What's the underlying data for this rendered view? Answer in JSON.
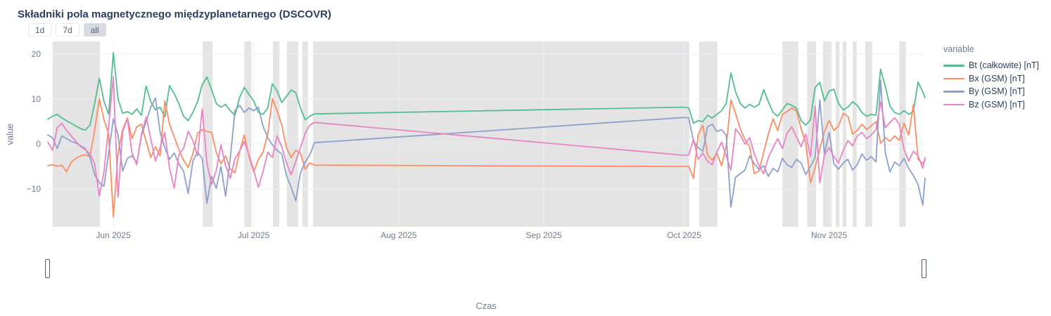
{
  "title": "Składniki pola magnetycznego międzyplanetarnego (DSCOVR)",
  "range_selector": {
    "buttons": [
      {
        "label": "1d",
        "active": false
      },
      {
        "label": "7d",
        "active": false
      },
      {
        "label": "all",
        "active": true
      }
    ]
  },
  "legend": {
    "title": "variable",
    "items": [
      {
        "label": "Bt (całkowite) [nT]",
        "color": "#53bd90"
      },
      {
        "label": "Bx (GSM) [nT]",
        "color": "#fc8d62"
      },
      {
        "label": "By (GSM) [nT]",
        "color": "#8da0cb"
      },
      {
        "label": "Bz (GSM) [nT]",
        "color": "#e983c4"
      }
    ]
  },
  "axes": {
    "y_title": "value",
    "x_title": "Czas",
    "y_ticks": [
      {
        "value": 20,
        "label": "20"
      },
      {
        "value": 10,
        "label": "10"
      },
      {
        "value": 0,
        "label": "0"
      },
      {
        "value": -10,
        "label": "−10"
      }
    ],
    "x_ticks": [
      {
        "day": 14,
        "label": "Jun 2025"
      },
      {
        "day": 44,
        "label": "Jul 2025"
      },
      {
        "day": 75,
        "label": "Aug 2025"
      },
      {
        "day": 106,
        "label": "Sep 2025"
      },
      {
        "day": 136,
        "label": "Oct 2025"
      },
      {
        "day": 167,
        "label": "Nov 2025"
      }
    ]
  },
  "colors": {
    "band": "#e4e4e4",
    "grid": "#ebeff7",
    "zeroline": "#e0e6f1",
    "tick_text": "#6e7b91",
    "title_text": "#2a3f5f"
  },
  "chart_data": {
    "type": "line",
    "title": "Składniki pola magnetycznego międzyplanetarnego (DSCOVR)",
    "xlabel": "Czas",
    "ylabel": "value",
    "legend_position": "right",
    "grid": true,
    "xlim": [
      0,
      187.5
    ],
    "ylim": [
      -18.4,
      22.8
    ],
    "x_unit": "day index (0 ≈ mid-May 2025; ticks mark month starts Jun–Nov 2025)",
    "data_gap": "no data between ≈14 Jul 2025 and ≈30 Sep 2025 (straight interpolation lines across shaded region)",
    "gap_bands_x": [
      [
        1.0,
        11.1
      ],
      [
        33.1,
        35.2
      ],
      [
        42.0,
        43.5
      ],
      [
        48.1,
        49.5
      ],
      [
        51.1,
        53.5
      ],
      [
        54.4,
        55.6
      ],
      [
        56.7,
        137.1
      ],
      [
        139.2,
        143.1
      ],
      [
        157.0,
        160.4
      ],
      [
        162.3,
        164.2
      ],
      [
        165.7,
        167.5
      ],
      [
        168.4,
        169.2
      ],
      [
        169.9,
        170.7
      ],
      [
        172.0,
        172.9
      ],
      [
        174.7,
        176.2
      ],
      [
        182.0,
        183.4
      ]
    ],
    "x": [
      0,
      1,
      2,
      3,
      4,
      5,
      6,
      7,
      8,
      9,
      10,
      11,
      12,
      13,
      14,
      15,
      16,
      17,
      18,
      19,
      20,
      21,
      22,
      23,
      24,
      25,
      26,
      27,
      28,
      29,
      30,
      31,
      32,
      33,
      34,
      35,
      36,
      37,
      38,
      39,
      40,
      41,
      42,
      43,
      44,
      45,
      46,
      47,
      48,
      49,
      50,
      51,
      52,
      53,
      54,
      55,
      56,
      57,
      136,
      137,
      138,
      139,
      140,
      141,
      142,
      143,
      144,
      145,
      146,
      147,
      148,
      149,
      150,
      151,
      152,
      153,
      154,
      155,
      156,
      157,
      158,
      159,
      160,
      161,
      162,
      163,
      164,
      165,
      166,
      167,
      168,
      169,
      170,
      171,
      172,
      173,
      174,
      175,
      176,
      177,
      178,
      179,
      180,
      181,
      182,
      183,
      184,
      185,
      186,
      187,
      187.5
    ],
    "series": [
      {
        "id": "bt",
        "name": "Bt (całkowite) [nT]",
        "color": "#53bd90",
        "values": [
          5.5,
          6.2,
          6.6,
          5.8,
          5.2,
          4.6,
          4.0,
          3.4,
          3.1,
          4.2,
          9.0,
          14.6,
          9.5,
          6.6,
          20.3,
          10.0,
          6.8,
          7.2,
          6.6,
          7.8,
          6.4,
          12.9,
          9.4,
          7.6,
          8.2,
          6.0,
          13.0,
          11.2,
          9.0,
          6.2,
          5.2,
          7.0,
          9.4,
          13.2,
          14.9,
          12.1,
          9.0,
          8.2,
          8.8,
          7.4,
          6.4,
          10.4,
          12.6,
          11.0,
          9.6,
          7.0,
          6.6,
          8.0,
          13.4,
          11.8,
          9.2,
          10.6,
          12.0,
          11.4,
          8.0,
          5.4,
          6.2,
          6.7,
          8.2,
          8.0,
          4.6,
          5.2,
          5.0,
          6.4,
          5.8,
          6.6,
          7.4,
          9.0,
          15.8,
          11.6,
          9.0,
          8.0,
          8.8,
          8.2,
          8.8,
          12.1,
          9.4,
          7.0,
          6.2,
          7.6,
          9.0,
          8.6,
          8.0,
          5.2,
          4.2,
          5.4,
          12.6,
          13.7,
          9.6,
          11.8,
          12.2,
          9.0,
          7.6,
          8.2,
          9.4,
          8.6,
          7.0,
          6.2,
          6.6,
          6.4,
          16.6,
          12.8,
          8.4,
          7.0,
          6.6,
          7.4,
          6.6,
          7.2,
          13.8,
          11.6,
          10.3
        ]
      },
      {
        "id": "bx",
        "name": "Bx (GSM) [nT]",
        "color": "#fc8d62",
        "values": [
          -4.8,
          -4.6,
          -4.9,
          -4.7,
          -6.2,
          -4.0,
          -3.2,
          -2.6,
          -2.4,
          -2.8,
          3.0,
          10.0,
          5.4,
          2.2,
          -16.2,
          -2.0,
          3.2,
          5.8,
          1.2,
          3.8,
          4.4,
          0.6,
          -3.0,
          -0.6,
          -2.6,
          9.6,
          4.4,
          1.6,
          -1.2,
          -3.6,
          -5.2,
          -2.2,
          2.4,
          3.2,
          2.8,
          2.6,
          -1.8,
          -4.4,
          -2.6,
          -5.6,
          -6.4,
          -1.6,
          2.0,
          -2.8,
          -6.2,
          -3.4,
          -1.8,
          2.2,
          10.1,
          7.4,
          4.2,
          -0.8,
          -3.0,
          -1.4,
          -2.0,
          -5.6,
          -4.2,
          -4.7,
          -5.0,
          -5.0,
          -7.6,
          2.0,
          4.2,
          -2.4,
          -3.6,
          -2.0,
          -4.8,
          -0.6,
          9.8,
          6.8,
          3.4,
          1.0,
          -0.6,
          -6.6,
          -6.0,
          -1.8,
          2.2,
          5.6,
          3.0,
          6.6,
          7.2,
          8.0,
          7.4,
          3.4,
          0.2,
          -8.6,
          -5.2,
          -1.0,
          2.8,
          5.2,
          3.0,
          4.0,
          6.8,
          6.2,
          2.2,
          3.0,
          4.4,
          3.2,
          4.0,
          5.0,
          0.2,
          1.4,
          0.6,
          1.8,
          0.8,
          4.6,
          2.0,
          8.8,
          -3.4,
          -4.4,
          -3.6
        ]
      },
      {
        "id": "by",
        "name": "By (GSM) [nT]",
        "color": "#8da0cb",
        "values": [
          2.0,
          1.4,
          -1.0,
          1.8,
          1.2,
          0.6,
          0.2,
          -0.4,
          -1.0,
          -3.0,
          -6.8,
          -8.6,
          -9.4,
          -2.0,
          5.6,
          2.0,
          -6.0,
          -3.2,
          -2.6,
          -4.2,
          1.8,
          5.0,
          8.2,
          10.2,
          2.6,
          -0.8,
          -3.4,
          -2.0,
          -4.4,
          -6.0,
          -11.0,
          -3.8,
          -1.8,
          -3.2,
          -13.2,
          -7.2,
          -9.8,
          -5.0,
          -11.6,
          -3.0,
          7.4,
          8.6,
          7.0,
          8.0,
          7.4,
          8.2,
          4.0,
          1.4,
          -0.2,
          -1.4,
          -2.2,
          -7.0,
          -9.6,
          -12.6,
          -6.4,
          -4.0,
          -2.4,
          0.3,
          5.9,
          5.8,
          0.6,
          -0.8,
          -1.6,
          3.8,
          4.4,
          2.8,
          3.2,
          2.0,
          -14.0,
          -7.4,
          -6.6,
          -5.8,
          -2.6,
          -4.4,
          -5.6,
          -4.8,
          -7.2,
          -5.4,
          -6.2,
          -3.2,
          -4.6,
          -5.2,
          -3.4,
          -4.2,
          -6.8,
          -5.0,
          -3.0,
          9.8,
          -2.2,
          2.6,
          -4.4,
          -5.6,
          -4.2,
          -3.4,
          -5.8,
          -4.6,
          -2.2,
          -3.6,
          -2.8,
          -4.0,
          14.2,
          -2.0,
          -6.2,
          -4.0,
          -4.8,
          -3.2,
          -5.4,
          -7.0,
          -9.0,
          -13.6,
          -7.6
        ]
      },
      {
        "id": "bz",
        "name": "Bz (GSM) [nT]",
        "color": "#e983c4",
        "values": [
          0.4,
          -1.4,
          3.6,
          4.6,
          3.0,
          1.8,
          0.6,
          -0.6,
          -1.2,
          -2.2,
          -4.4,
          -11.6,
          -6.2,
          4.0,
          15.0,
          -11.8,
          2.8,
          5.6,
          -2.0,
          -4.6,
          2.2,
          6.0,
          1.2,
          -3.8,
          -0.8,
          2.6,
          -5.4,
          -9.8,
          -2.4,
          -1.0,
          2.8,
          0.8,
          -2.6,
          7.8,
          -4.2,
          -9.0,
          -5.8,
          -0.2,
          -4.8,
          -7.6,
          -3.2,
          -1.6,
          0.6,
          -2.4,
          -5.8,
          -9.6,
          -6.2,
          -1.8,
          -3.0,
          1.8,
          -0.6,
          -4.2,
          -6.8,
          -3.8,
          -0.8,
          2.4,
          4.2,
          4.8,
          -2.5,
          -2.4,
          1.0,
          -3.4,
          -2.0,
          -3.8,
          -4.6,
          -1.8,
          0.4,
          -2.6,
          -5.8,
          3.4,
          2.0,
          0.0,
          1.4,
          -2.2,
          -4.8,
          -6.6,
          -3.0,
          -0.8,
          1.2,
          -1.0,
          2.4,
          3.8,
          1.6,
          -0.6,
          2.2,
          -2.8,
          8.4,
          -8.6,
          -2.4,
          -0.8,
          -2.8,
          -4.2,
          -1.4,
          0.8,
          -0.4,
          1.8,
          2.6,
          1.2,
          2.0,
          3.2,
          9.4,
          3.6,
          4.8,
          5.8,
          4.4,
          -1.2,
          -3.8,
          -1.6,
          -2.6,
          -5.4,
          -3.0
        ]
      }
    ]
  }
}
